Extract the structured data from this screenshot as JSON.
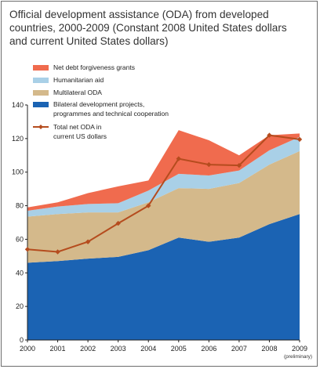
{
  "chart_data": {
    "type": "area",
    "title": "Official development assistance (ODA) from developed countries, 2000-2009 (Constant 2008 United States dollars and current United States dollars)",
    "categories": [
      "2000",
      "2001",
      "2002",
      "2003",
      "2004",
      "2005",
      "2006",
      "2007",
      "2008",
      "2009"
    ],
    "x_note": {
      "category": "2009",
      "text": "(preliminary)"
    },
    "ylim": [
      0,
      140
    ],
    "yticks": [
      0,
      20,
      40,
      60,
      80,
      100,
      120,
      140
    ],
    "stacked_series": [
      {
        "name": "Bilateral development projects, programmes and technical cooperation",
        "color": "#1b63b3",
        "values": [
          46,
          47,
          48.5,
          49.5,
          53.5,
          61,
          58.5,
          61,
          69,
          75
        ]
      },
      {
        "name": "Multilateral ODA",
        "color": "#d4b98b",
        "values": [
          27.5,
          28,
          27.5,
          26.5,
          28.5,
          29.5,
          31.5,
          32.5,
          35.5,
          37.5
        ]
      },
      {
        "name": "Humanitarian aid",
        "color": "#a9d0e7",
        "values": [
          3.5,
          4.5,
          5,
          5.5,
          7,
          8.5,
          8,
          7.5,
          8.5,
          8.5
        ]
      },
      {
        "name": "Net debt forgiveness grants",
        "color": "#f06b4e",
        "values": [
          2,
          2.5,
          6.5,
          10,
          6,
          26,
          21,
          9,
          9,
          2
        ]
      }
    ],
    "line_series": {
      "name": "Total net ODA in current US dollars",
      "color": "#b54c1e",
      "values": [
        54,
        52.5,
        58.5,
        69.5,
        80,
        108,
        104.5,
        104,
        122,
        119.5
      ]
    },
    "legend": {
      "placement": "top-left"
    }
  }
}
